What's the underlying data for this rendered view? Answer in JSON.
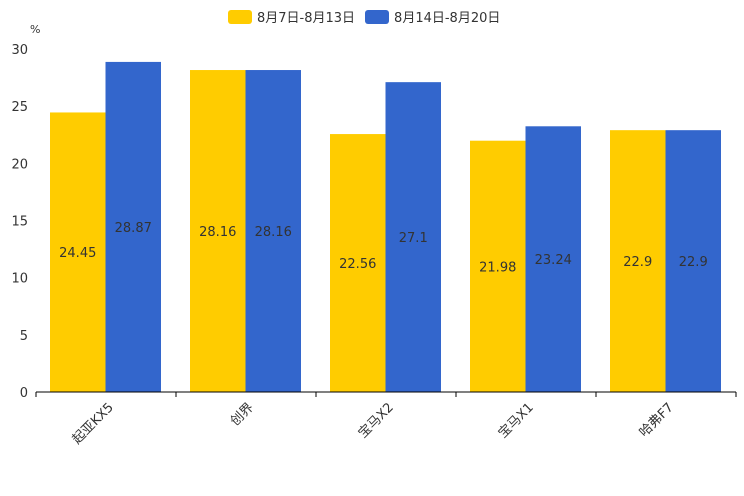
{
  "chart_data": {
    "type": "bar",
    "title": "",
    "ylabel": "%",
    "xlabel": "",
    "ylim": [
      0,
      30
    ],
    "yticks": [
      0,
      5,
      10,
      15,
      20,
      25,
      30
    ],
    "categories": [
      "起亚KX5",
      "创界",
      "宝马X2",
      "宝马X1",
      "哈弗F7"
    ],
    "series": [
      {
        "name": "8月7日-8月13日",
        "color": "#FFCC00",
        "values": [
          24.45,
          28.16,
          22.56,
          21.98,
          22.9
        ],
        "labels": [
          "24.45",
          "28.16",
          "22.56",
          "21.98",
          "22.9"
        ]
      },
      {
        "name": "8月14日-8月20日",
        "color": "#3366CC",
        "values": [
          28.87,
          28.16,
          27.1,
          23.24,
          22.9
        ],
        "labels": [
          "28.87",
          "28.16",
          "27.1",
          "23.24",
          "22.9"
        ]
      }
    ],
    "legend_position": "top-center",
    "grid": false
  }
}
